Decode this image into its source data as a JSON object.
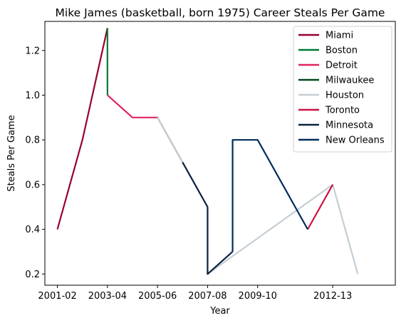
{
  "chart_data": {
    "type": "line",
    "title": "Mike James (basketball, born 1975) Career Steals Per Game",
    "xlabel": "Year",
    "ylabel": "Steals Per Game",
    "x_ticks": [
      "2001-02",
      "2003-04",
      "2005-06",
      "2007-08",
      "2009-10",
      "2012-13"
    ],
    "y_ticks": [
      "0.2",
      "0.4",
      "0.6",
      "0.8",
      "1.0",
      "1.2"
    ],
    "ylim": [
      0.15,
      1.33
    ],
    "legend_position": "top-right",
    "grid": false,
    "series": [
      {
        "name": "Miami",
        "color": "#98002E",
        "points": [
          [
            "2001-02",
            0.4
          ],
          [
            "2002-03",
            0.8
          ],
          [
            "2003-04",
            1.3
          ]
        ]
      },
      {
        "name": "Boston",
        "color": "#007A33",
        "points": [
          [
            "2003-04",
            1.3
          ],
          [
            "2003-04",
            1.0
          ]
        ]
      },
      {
        "name": "Detroit",
        "color": "#E0245E",
        "points": [
          [
            "2003-04",
            1.0
          ],
          [
            "2004-05",
            0.9
          ],
          [
            "2005-06",
            0.9
          ],
          [
            "2006-07",
            0.7
          ]
        ]
      },
      {
        "name": "Milwaukee",
        "color": "#00471B",
        "points": []
      },
      {
        "name": "Houston",
        "color": "#C4CED4",
        "points": [
          [
            "2005-06",
            0.9
          ],
          [
            "2007-08",
            0.5
          ],
          [
            "2007-08",
            0.2
          ],
          [
            "2012-13",
            0.6
          ],
          [
            "2013-14",
            0.2
          ]
        ]
      },
      {
        "name": "Toronto",
        "color": "#CE1141",
        "points": [
          [
            "2011-12",
            0.4
          ],
          [
            "2012-13",
            0.6
          ]
        ]
      },
      {
        "name": "Minnesota",
        "color": "#0C2340",
        "points": [
          [
            "2006-07",
            0.7
          ],
          [
            "2007-08",
            0.5
          ],
          [
            "2007-08",
            0.2
          ],
          [
            "2008-09",
            0.3
          ]
        ]
      },
      {
        "name": "New Orleans",
        "color": "#002B5C",
        "points": [
          [
            "2008-09",
            0.3
          ],
          [
            "2008-09",
            0.8
          ],
          [
            "2009-10",
            0.8
          ],
          [
            "2011-12",
            0.4
          ]
        ]
      }
    ]
  }
}
